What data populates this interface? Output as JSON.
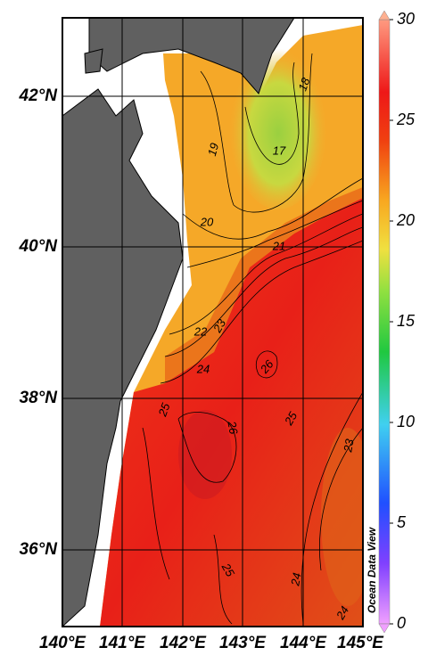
{
  "map": {
    "lon_labels": [
      "140°E",
      "141°E",
      "142°E",
      "143°E",
      "144°E",
      "145°E"
    ],
    "lat_labels": [
      "36°N",
      "38°N",
      "40°N",
      "42°N"
    ],
    "colorbar": {
      "lim": [
        0,
        30
      ],
      "ticks": [
        0,
        5,
        10,
        15,
        20,
        25,
        30
      ]
    },
    "contour_labels": [
      "19",
      "20",
      "21",
      "22",
      "23",
      "24",
      "26",
      "25",
      "26",
      "25",
      "23",
      "25",
      "24",
      "24",
      "17",
      "18"
    ],
    "watermark": "Ocean Data View"
  }
}
